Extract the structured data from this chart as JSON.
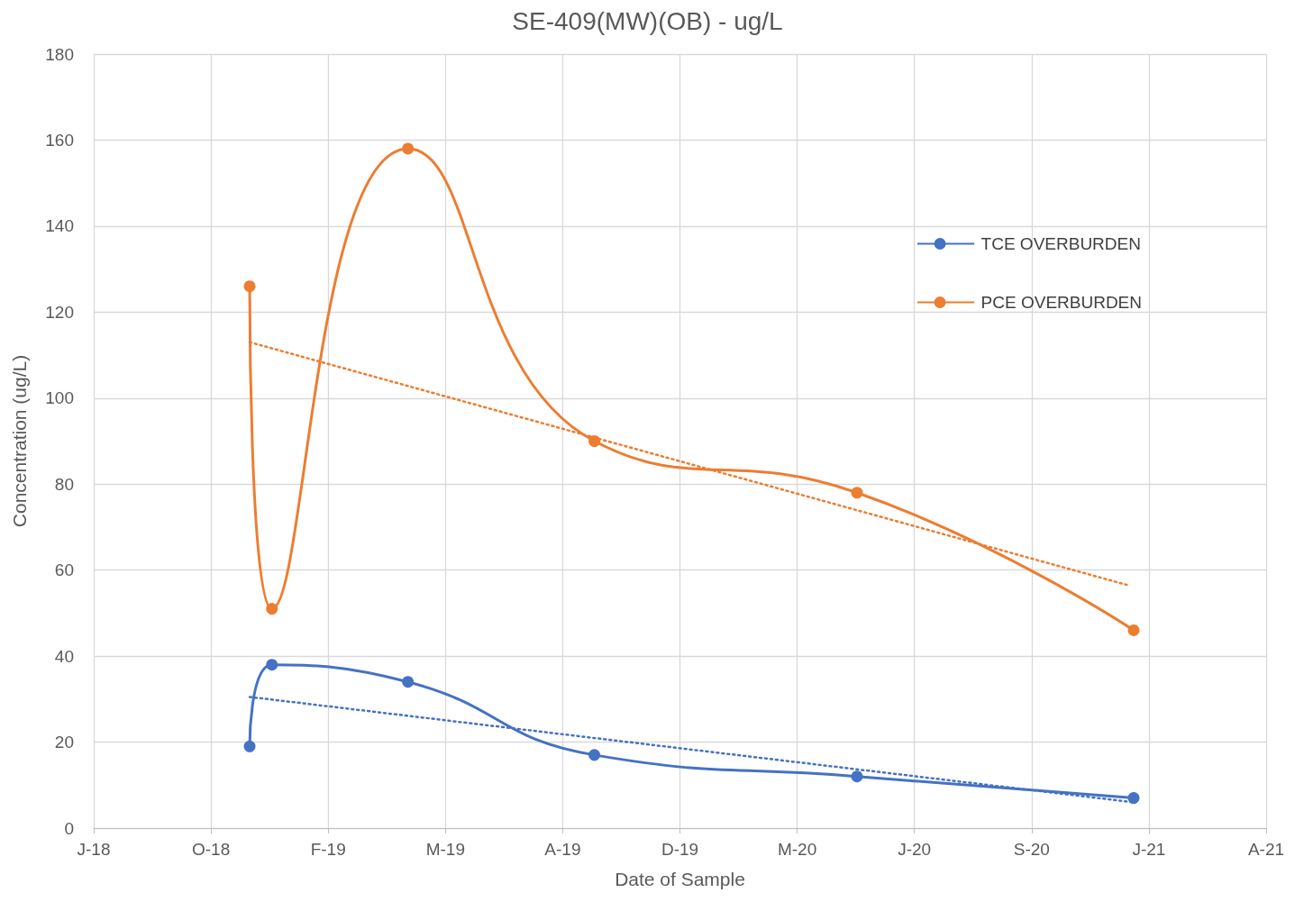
{
  "chart_data": {
    "type": "line",
    "title": "SE-409(MW)(OB) - ug/L",
    "xlabel": "Date of Sample",
    "ylabel": "Concentration (ug/L)",
    "x": [
      "2018-11-30",
      "2018-12-19",
      "2019-04-14",
      "2019-09-20",
      "2020-05-01",
      "2020-12-23"
    ],
    "series": [
      {
        "name": "TCE OVERBURDEN",
        "color": "#4472c4",
        "values": [
          19,
          38,
          34,
          17,
          12,
          7
        ],
        "marker": "circle",
        "line_style": "solid"
      },
      {
        "name": "PCE OVERBURDEN",
        "color": "#ed7d31",
        "values": [
          126,
          51,
          158,
          90,
          78,
          46
        ],
        "marker": "circle",
        "line_style": "solid"
      },
      {
        "type": "line",
        "x": [
          "2018-11-30",
          "2020-12-23"
        ],
        "color": "#4472c4",
        "values": [
          30.5,
          6
        ],
        "marker": "none",
        "line_style": "dotted"
      },
      {
        "type": "line",
        "x": [
          "2018-11-30",
          "2020-12-18"
        ],
        "color": "#ed7d31",
        "values": [
          113,
          56.5
        ],
        "marker": "none",
        "line_style": "dotted"
      }
    ],
    "xlim": [
      "2018-07-20",
      "2021-04-15"
    ],
    "xticks": [
      {
        "value": "2018-07-20",
        "label": "J-18"
      },
      {
        "value": "2018-10-28",
        "label": "O-18"
      },
      {
        "value": "2019-02-05",
        "label": "F-19"
      },
      {
        "value": "2019-05-16",
        "label": "M-19"
      },
      {
        "value": "2019-08-24",
        "label": "A-19"
      },
      {
        "value": "2019-12-02",
        "label": "D-19"
      },
      {
        "value": "2020-03-11",
        "label": "M-20"
      },
      {
        "value": "2020-06-19",
        "label": "J-20"
      },
      {
        "value": "2020-09-27",
        "label": "S-20"
      },
      {
        "value": "2021-01-05",
        "label": "J-21"
      },
      {
        "value": "2021-04-15",
        "label": "A-21"
      }
    ],
    "ylim": [
      0,
      180
    ],
    "yticks": [
      0,
      20,
      40,
      60,
      80,
      100,
      120,
      140,
      160,
      180
    ],
    "grid": true,
    "legend": "top right"
  }
}
